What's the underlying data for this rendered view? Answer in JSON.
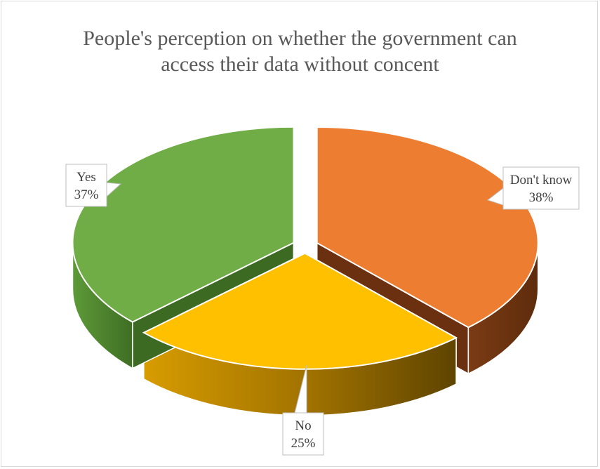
{
  "chart_data": {
    "type": "pie",
    "title_lines": [
      "People's perception on whether the government can",
      "access their data without concent"
    ],
    "slices": [
      {
        "label": "Don't know",
        "value": 38,
        "value_text": "38%",
        "color": "#ED7D31"
      },
      {
        "label": "No",
        "value": 25,
        "value_text": "25%",
        "color": "#FFC000"
      },
      {
        "label": "Yes",
        "value": 37,
        "value_text": "37%",
        "color": "#70AD47"
      }
    ],
    "style": "3d-exploded"
  }
}
